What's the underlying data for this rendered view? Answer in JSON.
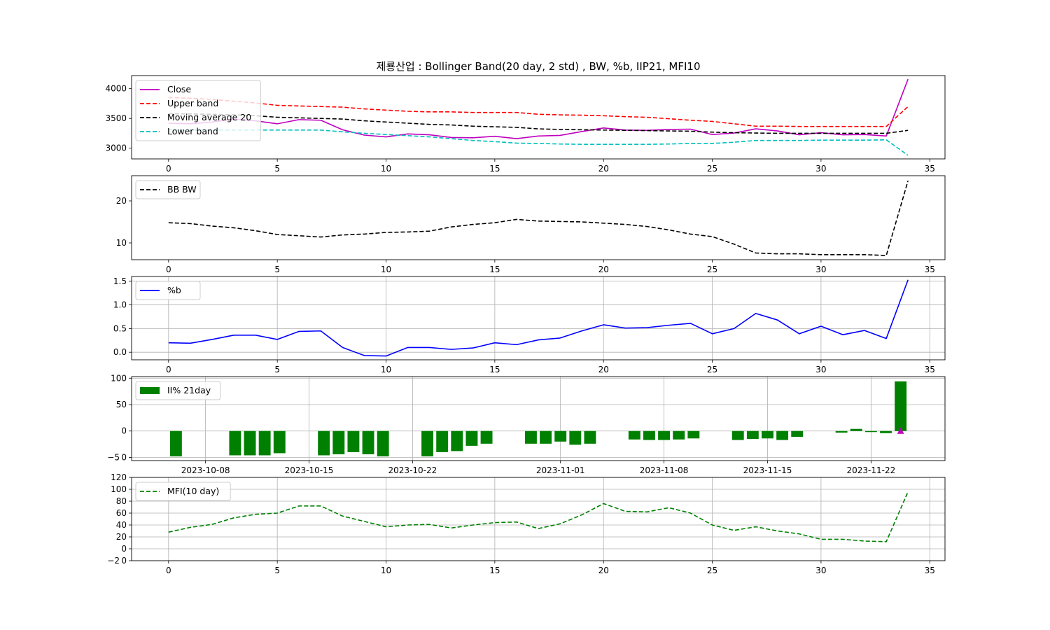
{
  "title": "제룡산업 : Bollinger Band(20 day, 2 std) , BW, %b, IIP21, MFI10",
  "colors": {
    "close": "#bf00bf",
    "upper": "#ff0000",
    "ma": "#000000",
    "lower": "#00bfbf",
    "bw": "#000000",
    "pctb": "#0000ff",
    "iip": "#008000",
    "marker": "#bf00bf",
    "mfi": "#008000",
    "grid": "#b0b0b0"
  },
  "chart_data": [
    {
      "type": "line",
      "panel": "bollinger",
      "x": [
        0,
        1,
        2,
        3,
        4,
        5,
        6,
        7,
        8,
        9,
        10,
        11,
        12,
        13,
        14,
        15,
        16,
        17,
        18,
        19,
        20,
        21,
        22,
        23,
        24,
        25,
        26,
        27,
        28,
        29,
        30,
        31,
        32,
        33,
        34
      ],
      "xlim": [
        -1.7,
        35.7
      ],
      "ylim": [
        2820,
        4220
      ],
      "x_ticks": [
        0,
        5,
        10,
        15,
        20,
        25,
        30,
        35
      ],
      "y_ticks": [
        3000,
        3500,
        4000
      ],
      "grid": false,
      "legend_position": "upper-left",
      "series": [
        {
          "name": "Close",
          "style": "solid",
          "color_key": "close",
          "values": [
            3420,
            3410,
            3440,
            3490,
            3460,
            3410,
            3480,
            3470,
            3310,
            3220,
            3190,
            3240,
            3225,
            3180,
            3175,
            3200,
            3160,
            3205,
            3215,
            3280,
            3340,
            3305,
            3300,
            3315,
            3320,
            3230,
            3255,
            3325,
            3290,
            3225,
            3260,
            3225,
            3230,
            3205,
            4160
          ]
        },
        {
          "name": "Upper band",
          "style": "dashed",
          "color_key": "upper",
          "values": [
            3850,
            3840,
            3820,
            3790,
            3760,
            3720,
            3710,
            3700,
            3690,
            3660,
            3640,
            3620,
            3610,
            3610,
            3600,
            3600,
            3600,
            3570,
            3560,
            3555,
            3545,
            3530,
            3520,
            3495,
            3470,
            3450,
            3410,
            3370,
            3370,
            3365,
            3365,
            3365,
            3365,
            3365,
            3700
          ]
        },
        {
          "name": "Moving average 20",
          "style": "dashed",
          "color_key": "ma",
          "values": [
            3580,
            3575,
            3570,
            3560,
            3545,
            3520,
            3510,
            3500,
            3490,
            3460,
            3440,
            3420,
            3400,
            3390,
            3370,
            3360,
            3350,
            3325,
            3315,
            3310,
            3305,
            3300,
            3295,
            3290,
            3285,
            3270,
            3260,
            3255,
            3250,
            3250,
            3250,
            3250,
            3250,
            3250,
            3300
          ]
        },
        {
          "name": "Lower band",
          "style": "dashed",
          "color_key": "lower",
          "values": [
            3310,
            3305,
            3305,
            3305,
            3305,
            3305,
            3305,
            3305,
            3275,
            3250,
            3230,
            3210,
            3190,
            3160,
            3130,
            3110,
            3085,
            3080,
            3070,
            3065,
            3065,
            3065,
            3065,
            3070,
            3080,
            3080,
            3100,
            3130,
            3130,
            3130,
            3135,
            3135,
            3135,
            3140,
            2880
          ]
        }
      ]
    },
    {
      "type": "line",
      "panel": "bandwidth",
      "x": [
        0,
        1,
        2,
        3,
        4,
        5,
        6,
        7,
        8,
        9,
        10,
        11,
        12,
        13,
        14,
        15,
        16,
        17,
        18,
        19,
        20,
        21,
        22,
        23,
        24,
        25,
        26,
        27,
        28,
        29,
        30,
        31,
        32,
        33,
        34
      ],
      "xlim": [
        -1.7,
        35.7
      ],
      "ylim": [
        6,
        26
      ],
      "x_ticks": [
        0,
        5,
        10,
        15,
        20,
        25,
        30,
        35
      ],
      "y_ticks": [
        10,
        20
      ],
      "grid": false,
      "legend_position": "upper-left",
      "series": [
        {
          "name": "BB BW",
          "style": "dashed",
          "color_key": "bw",
          "values": [
            14.8,
            14.6,
            14.0,
            13.6,
            12.9,
            12.0,
            11.7,
            11.4,
            11.9,
            12.1,
            12.5,
            12.6,
            12.8,
            13.8,
            14.4,
            14.8,
            15.6,
            15.2,
            15.1,
            15.0,
            14.7,
            14.4,
            13.9,
            13.1,
            12.1,
            11.5,
            9.7,
            7.6,
            7.4,
            7.4,
            7.2,
            7.2,
            7.2,
            7.0,
            24.8
          ]
        }
      ]
    },
    {
      "type": "line",
      "panel": "percent_b",
      "x": [
        0,
        1,
        2,
        3,
        4,
        5,
        6,
        7,
        8,
        9,
        10,
        11,
        12,
        13,
        14,
        15,
        16,
        17,
        18,
        19,
        20,
        21,
        22,
        23,
        24,
        25,
        26,
        27,
        28,
        29,
        30,
        31,
        32,
        33,
        34
      ],
      "xlim": [
        -1.7,
        35.7
      ],
      "ylim": [
        -0.16,
        1.6
      ],
      "x_ticks": [
        0,
        5,
        10,
        15,
        20,
        25,
        30,
        35
      ],
      "y_ticks": [
        0.0,
        0.5,
        1.0,
        1.5
      ],
      "y_tick_labels": [
        "0.0",
        "0.5",
        "1.0",
        "1.5"
      ],
      "grid": true,
      "legend_position": "upper-left",
      "series": [
        {
          "name": "%b",
          "style": "solid",
          "color_key": "pctb",
          "values": [
            0.2,
            0.19,
            0.27,
            0.36,
            0.36,
            0.27,
            0.44,
            0.45,
            0.1,
            -0.07,
            -0.08,
            0.1,
            0.1,
            0.06,
            0.09,
            0.2,
            0.16,
            0.26,
            0.3,
            0.45,
            0.58,
            0.51,
            0.52,
            0.57,
            0.61,
            0.39,
            0.5,
            0.82,
            0.68,
            0.39,
            0.55,
            0.37,
            0.46,
            0.29,
            1.53
          ]
        }
      ]
    },
    {
      "type": "bar",
      "panel": "iip",
      "x_type": "date",
      "categories": [
        "2023-10-06",
        "2023-10-10",
        "2023-10-11",
        "2023-10-12",
        "2023-10-13",
        "2023-10-16",
        "2023-10-17",
        "2023-10-18",
        "2023-10-19",
        "2023-10-20",
        "2023-10-23",
        "2023-10-24",
        "2023-10-25",
        "2023-10-26",
        "2023-10-27",
        "2023-10-30",
        "2023-10-31",
        "2023-11-01",
        "2023-11-02",
        "2023-11-03",
        "2023-11-06",
        "2023-11-07",
        "2023-11-08",
        "2023-11-09",
        "2023-11-10",
        "2023-11-13",
        "2023-11-14",
        "2023-11-15",
        "2023-11-16",
        "2023-11-17",
        "2023-11-20",
        "2023-11-21",
        "2023-11-22",
        "2023-11-23",
        "2023-11-24"
      ],
      "xlim": [
        "2023-10-03",
        "2023-11-27"
      ],
      "ylim": [
        -56,
        103
      ],
      "x_ticks": [
        "2023-10-08",
        "2023-10-15",
        "2023-10-22",
        "2023-11-01",
        "2023-11-08",
        "2023-11-15",
        "2023-11-22"
      ],
      "y_ticks": [
        -50,
        0,
        50,
        100
      ],
      "y_tick_labels": [
        "−5 0",
        "0",
        "50",
        "100"
      ],
      "grid": true,
      "legend_position": "upper-left",
      "series": [
        {
          "name": "II% 21day",
          "color_key": "iip",
          "values": [
            -48,
            -46,
            -46,
            -46,
            -42,
            -46,
            -44,
            -40,
            -44,
            -48,
            -48,
            -40,
            -38,
            -28,
            -24,
            -24,
            -24,
            -20,
            -26,
            -24,
            -16,
            -17,
            -17,
            -16,
            -14,
            -17,
            -15,
            -14,
            -17,
            -11,
            -3,
            4,
            -2,
            -4,
            94
          ]
        }
      ],
      "marker": {
        "date": "2023-11-24",
        "value": 0,
        "shape": "triangle-up",
        "color_key": "marker"
      }
    },
    {
      "type": "line",
      "panel": "mfi",
      "x": [
        0,
        1,
        2,
        3,
        4,
        5,
        6,
        7,
        8,
        9,
        10,
        11,
        12,
        13,
        14,
        15,
        16,
        17,
        18,
        19,
        20,
        21,
        22,
        23,
        24,
        25,
        26,
        27,
        28,
        29,
        30,
        31,
        32,
        33,
        34
      ],
      "xlim": [
        -1.7,
        35.7
      ],
      "ylim": [
        -20,
        120
      ],
      "x_ticks": [
        0,
        5,
        10,
        15,
        20,
        25,
        30,
        35
      ],
      "y_ticks": [
        -20,
        0,
        20,
        40,
        60,
        80,
        100,
        120
      ],
      "y_tick_labels": [
        "−2 0",
        "0",
        "20",
        "40",
        "60",
        "80",
        "100",
        "120"
      ],
      "grid": true,
      "legend_position": "upper-left",
      "series": [
        {
          "name": "MFI(10 day)",
          "style": "dashed",
          "color_key": "mfi",
          "values": [
            28,
            36,
            41,
            52,
            58,
            60,
            72,
            72,
            55,
            46,
            37,
            40,
            41,
            35,
            40,
            44,
            45,
            34,
            42,
            57,
            76,
            63,
            62,
            69,
            60,
            40,
            31,
            37,
            30,
            25,
            16,
            16,
            13,
            12,
            96
          ]
        }
      ]
    }
  ]
}
